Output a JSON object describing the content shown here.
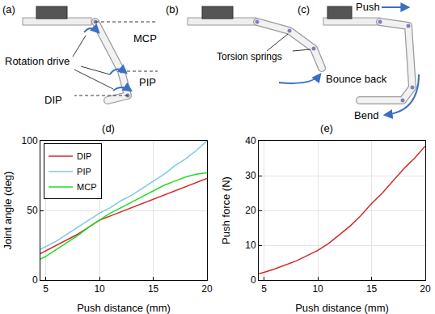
{
  "diagram": {
    "panels": [
      {
        "label": "(a)",
        "joints": [
          "MCP",
          "PIP",
          "DIP"
        ],
        "annotation": "Rotation drive"
      },
      {
        "label": "(b)",
        "springs": "Torsion springs",
        "motion": "Bounce back"
      },
      {
        "label": "(c)",
        "push": "Push",
        "bend": "Bend"
      }
    ]
  },
  "chart_data": [
    {
      "type": "line",
      "title": "(d)",
      "x_label": "Push distance (mm)",
      "y_label": "Joint angle (deg)",
      "x": [
        4.5,
        5,
        6,
        7,
        8,
        9,
        10,
        11,
        12,
        13,
        14,
        15,
        16,
        17,
        18,
        19,
        20
      ],
      "series": [
        {
          "name": "DIP",
          "color": "#d62828",
          "values": [
            19,
            21,
            25,
            29,
            33,
            38,
            43,
            46,
            49,
            52,
            55,
            58,
            61,
            64,
            67,
            70,
            73
          ]
        },
        {
          "name": "PIP",
          "color": "#7ec8e3",
          "values": [
            22,
            24,
            28,
            33,
            38,
            43,
            48,
            52,
            57,
            61,
            66,
            71,
            76,
            82,
            87,
            93,
            100
          ]
        },
        {
          "name": "MCP",
          "color": "#22dd22",
          "values": [
            15,
            17,
            22,
            27,
            32,
            38,
            43,
            48,
            52,
            56,
            60,
            64,
            68,
            71,
            74,
            76,
            77
          ]
        }
      ],
      "xlim": [
        4.5,
        20
      ],
      "xticks": [
        5,
        10,
        15,
        20
      ],
      "ylim": [
        0,
        100
      ],
      "yticks": [
        0,
        50,
        100
      ],
      "grid": true,
      "legend": "top-left"
    },
    {
      "type": "line",
      "title": "(e)",
      "x_label": "Push distance (mm)",
      "y_label": "Push force (N)",
      "x": [
        4.5,
        5,
        6,
        7,
        8,
        9,
        10,
        11,
        12,
        13,
        14,
        15,
        16,
        17,
        18,
        19,
        20
      ],
      "values": [
        1.8,
        2.2,
        3.2,
        4.3,
        5.5,
        7,
        8.5,
        10.5,
        13,
        15.5,
        18.5,
        22,
        25,
        28.5,
        32,
        35,
        38.5
      ],
      "color": "#d62828",
      "xlim": [
        4.5,
        20
      ],
      "xticks": [
        5,
        10,
        15,
        20
      ],
      "ylim": [
        0,
        40
      ],
      "yticks": [
        0,
        10,
        20,
        30,
        40
      ],
      "grid": true
    }
  ]
}
